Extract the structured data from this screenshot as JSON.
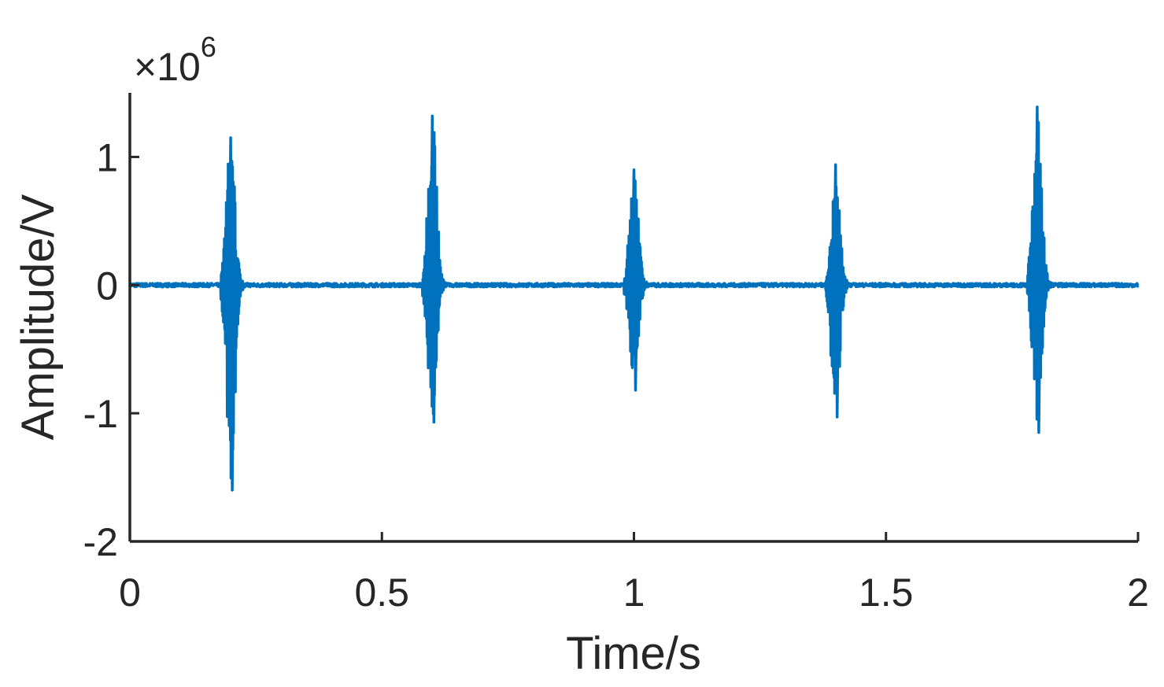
{
  "chart_data": {
    "type": "line",
    "xlabel": "Time/s",
    "ylabel": "Amplitude/V",
    "y_exponent": {
      "base": "×10",
      "power": "6"
    },
    "xlim": [
      0,
      2
    ],
    "ylim": [
      -2,
      1.5
    ],
    "x_ticks": [
      {
        "value": 0,
        "label": "0"
      },
      {
        "value": 0.5,
        "label": "0.5"
      },
      {
        "value": 1,
        "label": "1"
      },
      {
        "value": 1.5,
        "label": "1.5"
      },
      {
        "value": 2,
        "label": "2"
      }
    ],
    "y_ticks": [
      {
        "value": -2,
        "label": "-2"
      },
      {
        "value": -1,
        "label": "-1"
      },
      {
        "value": 0,
        "label": "0"
      },
      {
        "value": 1,
        "label": "1"
      }
    ],
    "color": "#0072bd",
    "baseline": 0,
    "bursts": [
      {
        "center": 0.2,
        "max": 1.15,
        "min": -1.6
      },
      {
        "center": 0.6,
        "max": 1.32,
        "min": -1.07
      },
      {
        "center": 1.0,
        "max": 0.9,
        "min": -0.82
      },
      {
        "center": 1.4,
        "max": 0.94,
        "min": -1.03
      },
      {
        "center": 1.8,
        "max": 1.39,
        "min": -1.15
      }
    ]
  }
}
